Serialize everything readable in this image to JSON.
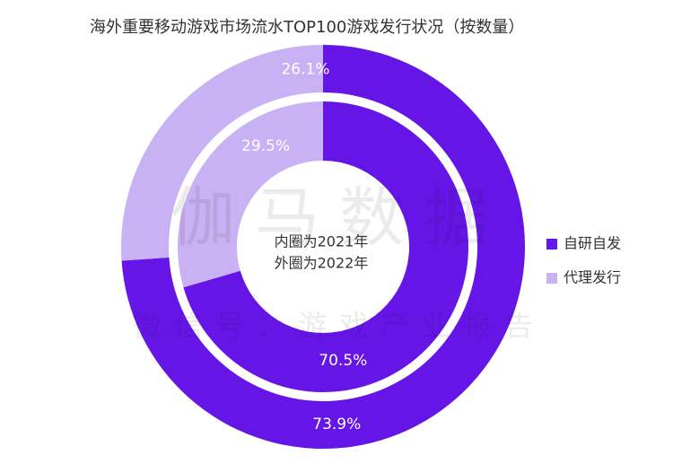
{
  "chart_data": {
    "type": "donut",
    "title": "海外重要移动游戏市场流水TOP100游戏发行状况（按数量）",
    "categories": [
      "自研自发",
      "代理发行"
    ],
    "colors": [
      "#6516e6",
      "#c9b2f4"
    ],
    "series": [
      {
        "values": [
          73.9,
          26.1
        ],
        "value_labels": [
          "73.9%",
          "26.1%"
        ]
      },
      {
        "values": [
          70.5,
          29.5
        ],
        "value_labels": [
          "70.5%",
          "29.5%"
        ]
      }
    ],
    "annotations": [
      "内圈为2021年",
      "外圈为2022年"
    ],
    "watermark": [
      "伽马数据",
      "微信号：游戏产业报告"
    ],
    "legend": "right"
  }
}
